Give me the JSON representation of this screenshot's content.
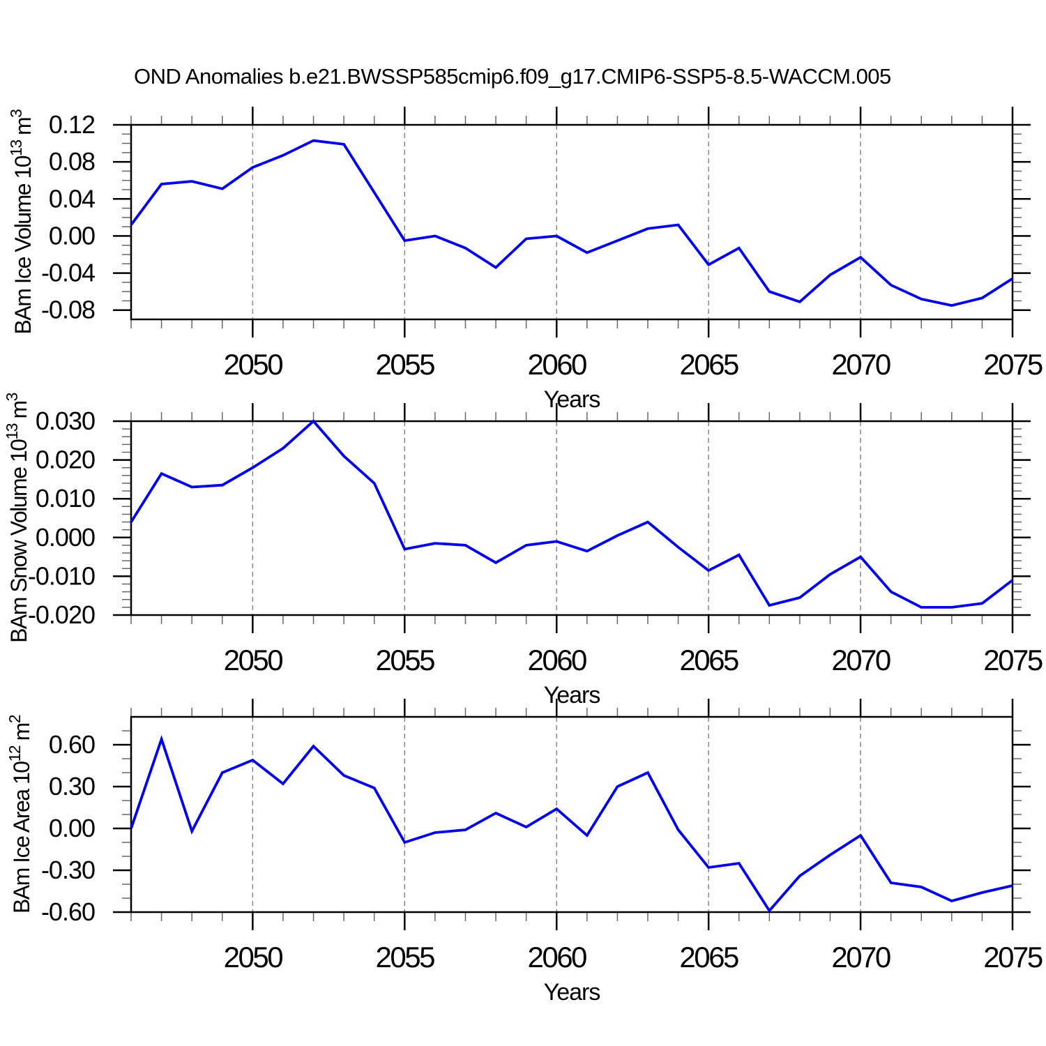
{
  "title": "OND Anomalies b.e21.BWSSP585cmip6.f09_g17.CMIP6-SSP5-8.5-WACCM.005",
  "colors": {
    "line": "#0000ee",
    "frame": "#000000",
    "grid": "#888888",
    "major_tick": "#000000",
    "minor_tick": "#666666",
    "text": "#000000",
    "background": "#ffffff"
  },
  "chart_data": [
    {
      "type": "line",
      "ylabel": "BAm Ice Volume 10^13 m^3",
      "xlabel": "Years",
      "x": [
        2046,
        2047,
        2048,
        2049,
        2050,
        2051,
        2052,
        2053,
        2054,
        2055,
        2056,
        2057,
        2058,
        2059,
        2060,
        2061,
        2062,
        2063,
        2064,
        2065,
        2066,
        2067,
        2068,
        2069,
        2070,
        2071,
        2072,
        2073,
        2074,
        2075
      ],
      "values": [
        0.012,
        0.056,
        0.059,
        0.051,
        0.074,
        0.087,
        0.103,
        0.099,
        0.047,
        -0.005,
        0.0,
        -0.013,
        -0.034,
        -0.003,
        0.0,
        -0.018,
        -0.005,
        0.008,
        0.012,
        -0.031,
        -0.013,
        -0.06,
        -0.071,
        -0.042,
        -0.023,
        -0.053,
        -0.068,
        -0.075,
        -0.067,
        -0.046
      ],
      "xlim": [
        2046,
        2075
      ],
      "ylim": [
        -0.09,
        0.12
      ],
      "ytick_values": [
        0.12,
        0.08,
        0.04,
        0.0,
        -0.04,
        -0.08
      ],
      "ytick_labels": [
        "0.12",
        "0.08",
        "0.04",
        "0.00",
        "-0.04",
        "-0.08"
      ],
      "yminor_step": 0.01,
      "xtick_values": [
        2050,
        2055,
        2060,
        2065,
        2070,
        2075
      ],
      "xtick_labels": [
        "2050",
        "2055",
        "2060",
        "2065",
        "2070",
        "2075"
      ],
      "xgrid_values": [
        2050,
        2055,
        2060,
        2065,
        2070
      ],
      "grid": "vertical-dashed",
      "legend": "none"
    },
    {
      "type": "line",
      "ylabel": "BAm Snow Volume 10^13 m^3",
      "xlabel": "Years",
      "x": [
        2046,
        2047,
        2048,
        2049,
        2050,
        2051,
        2052,
        2053,
        2054,
        2055,
        2056,
        2057,
        2058,
        2059,
        2060,
        2061,
        2062,
        2063,
        2064,
        2065,
        2066,
        2067,
        2068,
        2069,
        2070,
        2071,
        2072,
        2073,
        2074,
        2075
      ],
      "values": [
        0.004,
        0.0165,
        0.013,
        0.0135,
        0.018,
        0.023,
        0.03,
        0.021,
        0.014,
        -0.003,
        -0.0015,
        -0.002,
        -0.0065,
        -0.002,
        -0.001,
        -0.0035,
        0.0005,
        0.004,
        -0.0025,
        -0.0085,
        -0.0045,
        -0.0175,
        -0.0155,
        -0.0095,
        -0.005,
        -0.014,
        -0.018,
        -0.018,
        -0.017,
        -0.011
      ],
      "xlim": [
        2046,
        2075
      ],
      "ylim": [
        -0.02,
        0.03
      ],
      "ytick_values": [
        0.03,
        0.02,
        0.01,
        0.0,
        -0.01,
        -0.02
      ],
      "ytick_labels": [
        "0.030",
        "0.020",
        "0.010",
        "0.000",
        "-0.010",
        "-0.020"
      ],
      "yminor_step": 0.002,
      "xtick_values": [
        2050,
        2055,
        2060,
        2065,
        2070,
        2075
      ],
      "xtick_labels": [
        "2050",
        "2055",
        "2060",
        "2065",
        "2070",
        "2075"
      ],
      "xgrid_values": [
        2050,
        2055,
        2060,
        2065,
        2070
      ],
      "grid": "vertical-dashed",
      "legend": "none"
    },
    {
      "type": "line",
      "ylabel": "BAm Ice Area 10^12 m^2",
      "xlabel": "Years",
      "x": [
        2046,
        2047,
        2048,
        2049,
        2050,
        2051,
        2052,
        2053,
        2054,
        2055,
        2056,
        2057,
        2058,
        2059,
        2060,
        2061,
        2062,
        2063,
        2064,
        2065,
        2066,
        2067,
        2068,
        2069,
        2070,
        2071,
        2072,
        2073,
        2074,
        2075
      ],
      "values": [
        0.0,
        0.64,
        -0.02,
        0.4,
        0.49,
        0.32,
        0.59,
        0.38,
        0.29,
        -0.1,
        -0.03,
        -0.01,
        0.11,
        0.01,
        0.14,
        -0.05,
        0.3,
        0.4,
        -0.01,
        -0.28,
        -0.25,
        -0.59,
        -0.34,
        -0.19,
        -0.05,
        -0.39,
        -0.42,
        -0.52,
        -0.46,
        -0.41
      ],
      "xlim": [
        2046,
        2075
      ],
      "ylim": [
        -0.6,
        0.8
      ],
      "ytick_values": [
        0.6,
        0.3,
        0.0,
        -0.3,
        -0.6
      ],
      "ytick_labels": [
        "0.60",
        "0.30",
        "0.00",
        "-0.30",
        "-0.60"
      ],
      "yminor_step": 0.1,
      "xtick_values": [
        2050,
        2055,
        2060,
        2065,
        2070,
        2075
      ],
      "xtick_labels": [
        "2050",
        "2055",
        "2060",
        "2065",
        "2070",
        "2075"
      ],
      "xgrid_values": [
        2050,
        2055,
        2060,
        2065,
        2070
      ],
      "grid": "vertical-dashed",
      "legend": "none"
    }
  ]
}
